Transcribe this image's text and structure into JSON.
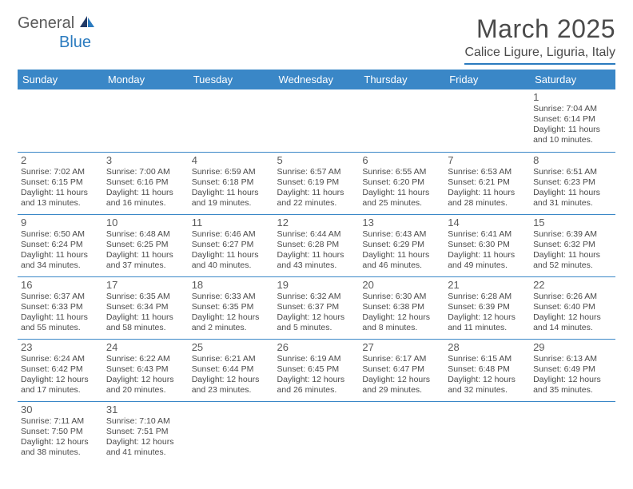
{
  "logo": {
    "part1": "General",
    "part2": "Blue"
  },
  "title": "March 2025",
  "location": "Calice Ligure, Liguria, Italy",
  "colors": {
    "header_bg": "#3a87c7",
    "header_text": "#ffffff",
    "border": "#3a87c7",
    "text": "#4a4a4a",
    "logo_gray": "#5a5a5a",
    "logo_blue": "#2b7bbf"
  },
  "weekdays": [
    "Sunday",
    "Monday",
    "Tuesday",
    "Wednesday",
    "Thursday",
    "Friday",
    "Saturday"
  ],
  "weeks": [
    [
      null,
      null,
      null,
      null,
      null,
      null,
      {
        "n": "1",
        "sr": "Sunrise: 7:04 AM",
        "ss": "Sunset: 6:14 PM",
        "dl": "Daylight: 11 hours and 10 minutes."
      }
    ],
    [
      {
        "n": "2",
        "sr": "Sunrise: 7:02 AM",
        "ss": "Sunset: 6:15 PM",
        "dl": "Daylight: 11 hours and 13 minutes."
      },
      {
        "n": "3",
        "sr": "Sunrise: 7:00 AM",
        "ss": "Sunset: 6:16 PM",
        "dl": "Daylight: 11 hours and 16 minutes."
      },
      {
        "n": "4",
        "sr": "Sunrise: 6:59 AM",
        "ss": "Sunset: 6:18 PM",
        "dl": "Daylight: 11 hours and 19 minutes."
      },
      {
        "n": "5",
        "sr": "Sunrise: 6:57 AM",
        "ss": "Sunset: 6:19 PM",
        "dl": "Daylight: 11 hours and 22 minutes."
      },
      {
        "n": "6",
        "sr": "Sunrise: 6:55 AM",
        "ss": "Sunset: 6:20 PM",
        "dl": "Daylight: 11 hours and 25 minutes."
      },
      {
        "n": "7",
        "sr": "Sunrise: 6:53 AM",
        "ss": "Sunset: 6:21 PM",
        "dl": "Daylight: 11 hours and 28 minutes."
      },
      {
        "n": "8",
        "sr": "Sunrise: 6:51 AM",
        "ss": "Sunset: 6:23 PM",
        "dl": "Daylight: 11 hours and 31 minutes."
      }
    ],
    [
      {
        "n": "9",
        "sr": "Sunrise: 6:50 AM",
        "ss": "Sunset: 6:24 PM",
        "dl": "Daylight: 11 hours and 34 minutes."
      },
      {
        "n": "10",
        "sr": "Sunrise: 6:48 AM",
        "ss": "Sunset: 6:25 PM",
        "dl": "Daylight: 11 hours and 37 minutes."
      },
      {
        "n": "11",
        "sr": "Sunrise: 6:46 AM",
        "ss": "Sunset: 6:27 PM",
        "dl": "Daylight: 11 hours and 40 minutes."
      },
      {
        "n": "12",
        "sr": "Sunrise: 6:44 AM",
        "ss": "Sunset: 6:28 PM",
        "dl": "Daylight: 11 hours and 43 minutes."
      },
      {
        "n": "13",
        "sr": "Sunrise: 6:43 AM",
        "ss": "Sunset: 6:29 PM",
        "dl": "Daylight: 11 hours and 46 minutes."
      },
      {
        "n": "14",
        "sr": "Sunrise: 6:41 AM",
        "ss": "Sunset: 6:30 PM",
        "dl": "Daylight: 11 hours and 49 minutes."
      },
      {
        "n": "15",
        "sr": "Sunrise: 6:39 AM",
        "ss": "Sunset: 6:32 PM",
        "dl": "Daylight: 11 hours and 52 minutes."
      }
    ],
    [
      {
        "n": "16",
        "sr": "Sunrise: 6:37 AM",
        "ss": "Sunset: 6:33 PM",
        "dl": "Daylight: 11 hours and 55 minutes."
      },
      {
        "n": "17",
        "sr": "Sunrise: 6:35 AM",
        "ss": "Sunset: 6:34 PM",
        "dl": "Daylight: 11 hours and 58 minutes."
      },
      {
        "n": "18",
        "sr": "Sunrise: 6:33 AM",
        "ss": "Sunset: 6:35 PM",
        "dl": "Daylight: 12 hours and 2 minutes."
      },
      {
        "n": "19",
        "sr": "Sunrise: 6:32 AM",
        "ss": "Sunset: 6:37 PM",
        "dl": "Daylight: 12 hours and 5 minutes."
      },
      {
        "n": "20",
        "sr": "Sunrise: 6:30 AM",
        "ss": "Sunset: 6:38 PM",
        "dl": "Daylight: 12 hours and 8 minutes."
      },
      {
        "n": "21",
        "sr": "Sunrise: 6:28 AM",
        "ss": "Sunset: 6:39 PM",
        "dl": "Daylight: 12 hours and 11 minutes."
      },
      {
        "n": "22",
        "sr": "Sunrise: 6:26 AM",
        "ss": "Sunset: 6:40 PM",
        "dl": "Daylight: 12 hours and 14 minutes."
      }
    ],
    [
      {
        "n": "23",
        "sr": "Sunrise: 6:24 AM",
        "ss": "Sunset: 6:42 PM",
        "dl": "Daylight: 12 hours and 17 minutes."
      },
      {
        "n": "24",
        "sr": "Sunrise: 6:22 AM",
        "ss": "Sunset: 6:43 PM",
        "dl": "Daylight: 12 hours and 20 minutes."
      },
      {
        "n": "25",
        "sr": "Sunrise: 6:21 AM",
        "ss": "Sunset: 6:44 PM",
        "dl": "Daylight: 12 hours and 23 minutes."
      },
      {
        "n": "26",
        "sr": "Sunrise: 6:19 AM",
        "ss": "Sunset: 6:45 PM",
        "dl": "Daylight: 12 hours and 26 minutes."
      },
      {
        "n": "27",
        "sr": "Sunrise: 6:17 AM",
        "ss": "Sunset: 6:47 PM",
        "dl": "Daylight: 12 hours and 29 minutes."
      },
      {
        "n": "28",
        "sr": "Sunrise: 6:15 AM",
        "ss": "Sunset: 6:48 PM",
        "dl": "Daylight: 12 hours and 32 minutes."
      },
      {
        "n": "29",
        "sr": "Sunrise: 6:13 AM",
        "ss": "Sunset: 6:49 PM",
        "dl": "Daylight: 12 hours and 35 minutes."
      }
    ],
    [
      {
        "n": "30",
        "sr": "Sunrise: 7:11 AM",
        "ss": "Sunset: 7:50 PM",
        "dl": "Daylight: 12 hours and 38 minutes."
      },
      {
        "n": "31",
        "sr": "Sunrise: 7:10 AM",
        "ss": "Sunset: 7:51 PM",
        "dl": "Daylight: 12 hours and 41 minutes."
      },
      null,
      null,
      null,
      null,
      null
    ]
  ]
}
